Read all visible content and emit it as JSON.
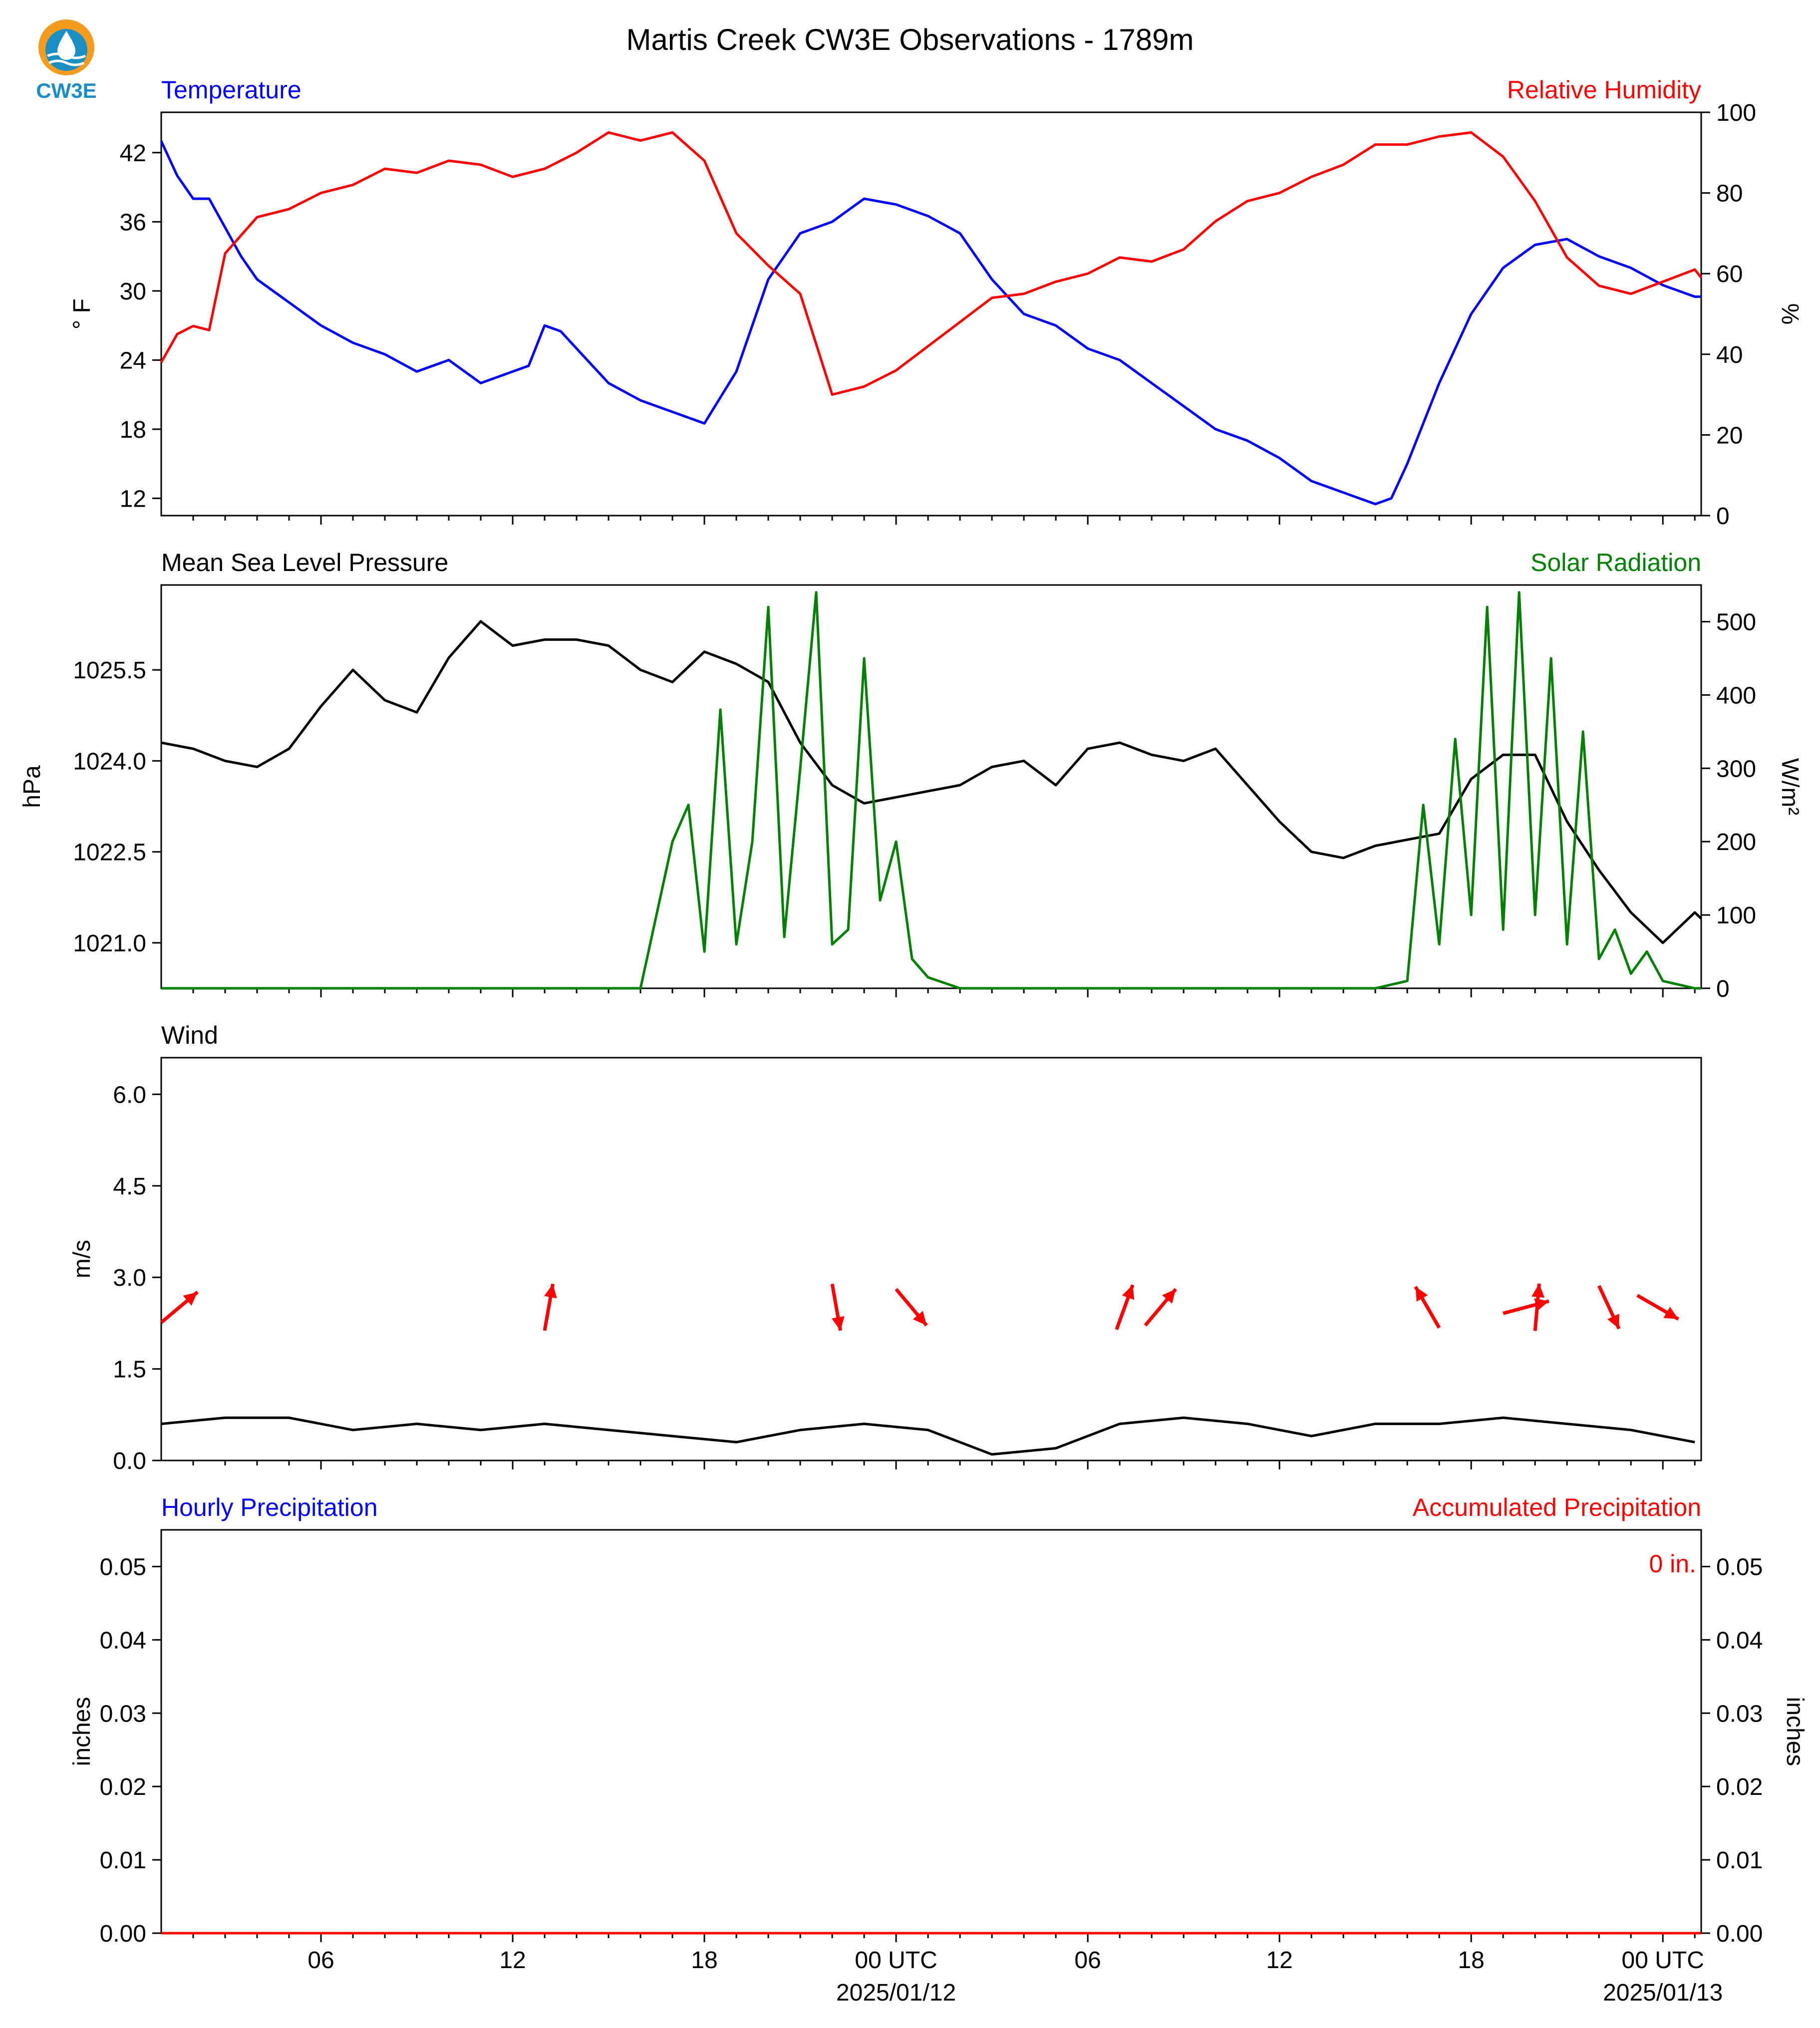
{
  "title": "Martis Creek CW3E Observations - 1789m",
  "logo": {
    "text": "CW3E",
    "icon": "water-drop-sun-logo-icon",
    "colors": {
      "sun": "#f39c1f",
      "drop": "#1b8fc4",
      "text": "#1b8fc4"
    }
  },
  "colors": {
    "temperature": "#0000ff",
    "humidity": "#ff0000",
    "pressure": "#000000",
    "solar": "#008000",
    "wind_speed": "#000000",
    "wind_arrow": "#ff0000",
    "hourly_precip": "#0000ff",
    "accum_precip": "#ff0000"
  },
  "x_axis": {
    "ticks": [
      {
        "label": "06",
        "date": ""
      },
      {
        "label": "12",
        "date": ""
      },
      {
        "label": "18",
        "date": ""
      },
      {
        "label": "00 UTC",
        "date": "2025/01/12"
      },
      {
        "label": "06",
        "date": ""
      },
      {
        "label": "12",
        "date": ""
      },
      {
        "label": "18",
        "date": ""
      },
      {
        "label": "00 UTC",
        "date": "2025/01/13"
      }
    ]
  },
  "chart_data": [
    {
      "type": "line",
      "panel": "temperature-humidity",
      "left_label": "Temperature",
      "right_label": "Relative Humidity",
      "ylabel_left": "° F",
      "ylabel_right": "%",
      "y_left_ticks": [
        "12",
        "18",
        "24",
        "30",
        "36",
        "42"
      ],
      "y_right_ticks": [
        "0",
        "20",
        "40",
        "60",
        "80",
        "100"
      ],
      "ylim_left": [
        10.5,
        45.5
      ],
      "ylim_right": [
        0,
        100
      ],
      "x_unit": "hours since 2025/01/11 01 UTC",
      "series": [
        {
          "name": "Temperature",
          "axis": "left",
          "x": [
            0,
            0.5,
            1,
            1.5,
            2,
            2.5,
            3,
            3.5,
            4,
            5,
            6,
            7,
            8,
            9,
            10,
            11,
            11.5,
            12,
            12.5,
            13,
            14,
            15,
            16,
            17,
            18,
            19,
            20,
            21,
            22,
            23,
            24,
            25,
            26,
            27,
            28,
            29,
            30,
            31,
            32,
            33,
            34,
            35,
            36,
            37,
            38,
            38.5,
            39,
            40,
            41,
            42,
            43,
            44,
            45,
            46,
            47,
            48,
            48.2
          ],
          "y": [
            43,
            40,
            38,
            38,
            35.5,
            33,
            31,
            30,
            29,
            27,
            25.5,
            24.5,
            23,
            24,
            22,
            23,
            23.5,
            27,
            26.5,
            25,
            22,
            20.5,
            19.5,
            18.5,
            23,
            31,
            35,
            36,
            38,
            37.5,
            36.5,
            35,
            31,
            28,
            27,
            25,
            24,
            22,
            20,
            18,
            17,
            15.5,
            13.5,
            12.5,
            11.5,
            12,
            15,
            22,
            28,
            32,
            34,
            34.5,
            33,
            32,
            30.5,
            29.5,
            29.5
          ]
        },
        {
          "name": "Relative Humidity",
          "axis": "right",
          "x": [
            0,
            0.5,
            1,
            1.5,
            2,
            3,
            4,
            5,
            6,
            7,
            8,
            9,
            10,
            11,
            12,
            13,
            14,
            15,
            16,
            17,
            18,
            19,
            20,
            21,
            22,
            23,
            24,
            25,
            26,
            27,
            28,
            29,
            30,
            31,
            32,
            33,
            34,
            35,
            36,
            37,
            38,
            39,
            40,
            41,
            42,
            43,
            44,
            45,
            46,
            47,
            48,
            48.2
          ],
          "y": [
            38,
            45,
            47,
            46,
            65,
            74,
            76,
            80,
            82,
            86,
            85,
            88,
            87,
            84,
            86,
            90,
            95,
            93,
            95,
            88,
            70,
            62,
            55,
            30,
            32,
            36,
            42,
            48,
            54,
            55,
            58,
            60,
            64,
            63,
            66,
            73,
            78,
            80,
            84,
            87,
            92,
            92,
            94,
            95,
            89,
            78,
            64,
            57,
            55,
            58,
            61,
            59
          ]
        }
      ]
    },
    {
      "type": "line",
      "panel": "pressure-solar",
      "left_label": "Mean Sea Level Pressure",
      "right_label": "Solar Radiation",
      "ylabel_left": "hPa",
      "ylabel_right": "W/m²",
      "y_left_ticks": [
        "1021.0",
        "1022.5",
        "1024.0",
        "1025.5"
      ],
      "y_right_ticks": [
        "0",
        "100",
        "200",
        "300",
        "400",
        "500"
      ],
      "ylim_left": [
        1020.25,
        1026.9
      ],
      "ylim_right": [
        0,
        550
      ],
      "x_unit": "hours since 2025/01/11 01 UTC",
      "series": [
        {
          "name": "Mean Sea Level Pressure",
          "axis": "left",
          "x": [
            0,
            1,
            2,
            3,
            4,
            5,
            6,
            7,
            8,
            9,
            10,
            11,
            12,
            13,
            14,
            15,
            16,
            17,
            18,
            19,
            20,
            21,
            22,
            23,
            24,
            25,
            26,
            27,
            28,
            29,
            30,
            31,
            32,
            33,
            34,
            35,
            36,
            37,
            38,
            39,
            40,
            41,
            42,
            43,
            44,
            45,
            46,
            47,
            48,
            48.2
          ],
          "y": [
            1024.3,
            1024.2,
            1024.0,
            1023.9,
            1024.2,
            1024.9,
            1025.5,
            1025.0,
            1024.8,
            1025.7,
            1026.3,
            1025.9,
            1026.0,
            1026.0,
            1025.9,
            1025.5,
            1025.3,
            1025.8,
            1025.6,
            1025.3,
            1024.3,
            1023.6,
            1023.3,
            1023.4,
            1023.5,
            1023.6,
            1023.9,
            1024.0,
            1023.6,
            1024.2,
            1024.3,
            1024.1,
            1024.0,
            1024.2,
            1023.6,
            1023.0,
            1022.5,
            1022.4,
            1022.6,
            1022.7,
            1022.8,
            1023.7,
            1024.1,
            1024.1,
            1023.0,
            1022.2,
            1021.5,
            1021.0,
            1021.5,
            1021.4
          ]
        },
        {
          "name": "Solar Radiation",
          "axis": "right",
          "x": [
            0,
            14,
            15,
            16,
            16.5,
            17,
            17.5,
            18,
            18.5,
            19,
            19.5,
            20,
            20.5,
            21,
            21.5,
            22,
            22.5,
            23,
            23.5,
            24,
            25,
            38,
            39,
            39.5,
            40,
            40.5,
            41,
            41.5,
            42,
            42.5,
            43,
            43.5,
            44,
            44.5,
            45,
            45.5,
            46,
            46.5,
            47,
            47.5,
            48,
            48.2
          ],
          "y": [
            0,
            0,
            0,
            200,
            250,
            50,
            380,
            60,
            200,
            520,
            70,
            300,
            540,
            60,
            80,
            450,
            120,
            200,
            40,
            15,
            0,
            0,
            10,
            250,
            60,
            340,
            100,
            520,
            80,
            540,
            100,
            450,
            60,
            350,
            40,
            80,
            20,
            50,
            10,
            5,
            0,
            0
          ]
        }
      ]
    },
    {
      "type": "line",
      "panel": "wind",
      "left_label": "Wind",
      "ylabel_left": "m/s",
      "y_left_ticks": [
        "0.0",
        "1.5",
        "3.0",
        "4.5",
        "6.0"
      ],
      "ylim_left": [
        0,
        6.6
      ],
      "x_unit": "hours since 2025/01/11 01 UTC",
      "series": [
        {
          "name": "Wind Speed",
          "axis": "left",
          "x": [
            0,
            2,
            4,
            6,
            8,
            10,
            12,
            14,
            16,
            18,
            20,
            22,
            24,
            26,
            28,
            30,
            32,
            34,
            36,
            38,
            40,
            42,
            44,
            46,
            48
          ],
          "y": [
            0.6,
            0.7,
            0.7,
            0.5,
            0.6,
            0.5,
            0.6,
            0.5,
            0.4,
            0.3,
            0.5,
            0.6,
            0.5,
            0.1,
            0.2,
            0.6,
            0.7,
            0.6,
            0.4,
            0.6,
            0.6,
            0.7,
            0.6,
            0.5,
            0.3
          ]
        }
      ],
      "wind_arrows": [
        {
          "hour": 0,
          "dir_deg": 230
        },
        {
          "hour": 12,
          "dir_deg": 190
        },
        {
          "hour": 21,
          "dir_deg": 350
        },
        {
          "hour": 23,
          "dir_deg": 320
        },
        {
          "hour": 29.9,
          "dir_deg": 200
        },
        {
          "hour": 30.8,
          "dir_deg": 220
        },
        {
          "hour": 40,
          "dir_deg": 150
        },
        {
          "hour": 42,
          "dir_deg": 255
        },
        {
          "hour": 43,
          "dir_deg": 185
        },
        {
          "hour": 45,
          "dir_deg": 335
        },
        {
          "hour": 46.2,
          "dir_deg": 300
        }
      ]
    },
    {
      "type": "line",
      "panel": "precipitation",
      "left_label": "Hourly Precipitation",
      "right_label": "Accumulated Precipitation",
      "ylabel_left": "inches",
      "ylabel_right": "inches",
      "y_left_ticks": [
        "0.00",
        "0.01",
        "0.02",
        "0.03",
        "0.04",
        "0.05"
      ],
      "y_right_ticks": [
        "0.00",
        "0.01",
        "0.02",
        "0.03",
        "0.04",
        "0.05"
      ],
      "ylim_left": [
        0,
        0.055
      ],
      "annotation": "0 in.",
      "x_unit": "hours since 2025/01/11 01 UTC",
      "series": [
        {
          "name": "Accumulated Precipitation",
          "axis": "left",
          "x": [
            0,
            48.2
          ],
          "y": [
            0,
            0
          ]
        }
      ]
    }
  ]
}
